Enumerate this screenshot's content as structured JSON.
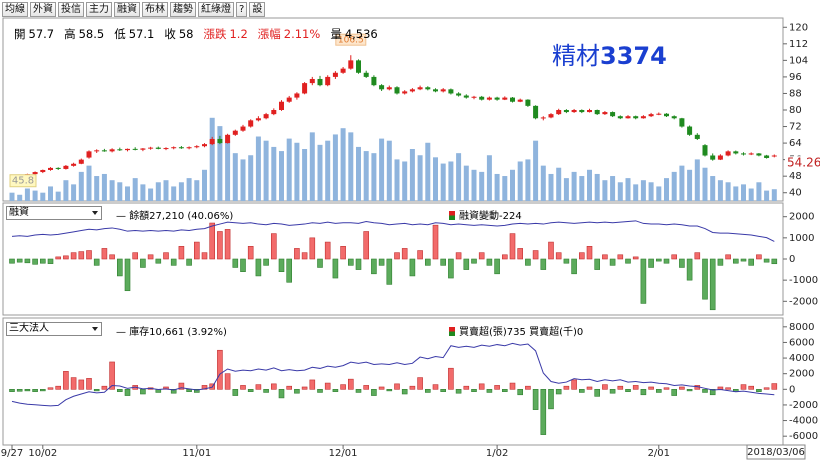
{
  "toolbar": [
    "均線",
    "外資",
    "投信",
    "主力",
    "融資",
    "布林",
    "趨勢",
    "紅綠燈",
    "?",
    "設"
  ],
  "quote": [
    {
      "label": "開",
      "value": "57.7"
    },
    {
      "label": "高",
      "value": "58.5"
    },
    {
      "label": "低",
      "value": "57.1"
    },
    {
      "label": "收",
      "value": "58"
    },
    {
      "label": "漲跌",
      "value": "1.2",
      "color": "#e02020"
    },
    {
      "label": "漲幅",
      "value": "2.11%",
      "color": "#e02020"
    },
    {
      "label": "量",
      "value": "4,536"
    }
  ],
  "chart_data": [
    {
      "type": "candlestick",
      "title_name": "精材",
      "title_code": "3374",
      "title_color": "#1a3fd0",
      "ylim": [
        36,
        124
      ],
      "yticks": [
        40,
        48,
        56,
        64,
        72,
        80,
        88,
        96,
        104,
        112,
        120
      ],
      "up_color": "#e02020",
      "down_color": "#1f8a1f",
      "volume_color": "#8fb4dd",
      "volume_lim": [
        0,
        70000
      ],
      "high_label": 106.5,
      "low_label": 45.8,
      "last_label": 54.26,
      "ohlc": [
        [
          46.5,
          47.5,
          45.8,
          47
        ],
        [
          47,
          48.3,
          46.8,
          48
        ],
        [
          48,
          49.2,
          47.6,
          49
        ],
        [
          49,
          50.3,
          48.7,
          50
        ],
        [
          50,
          51.2,
          49.5,
          51
        ],
        [
          51,
          52.4,
          50.6,
          52
        ],
        [
          52,
          52.3,
          51,
          51.5
        ],
        [
          51.5,
          53.4,
          51.2,
          53
        ],
        [
          53,
          54.5,
          52.6,
          54
        ],
        [
          54,
          56.5,
          53.8,
          56
        ],
        [
          57,
          60.5,
          56.5,
          60
        ],
        [
          60,
          61,
          59.2,
          60.5
        ],
        [
          60.5,
          61.2,
          59.8,
          60
        ],
        [
          60,
          61.5,
          59.5,
          61
        ],
        [
          61,
          61.8,
          60.2,
          60.6
        ],
        [
          60.6,
          61.4,
          60,
          61.2
        ],
        [
          61.2,
          62,
          60.5,
          60.8
        ],
        [
          60.8,
          61.6,
          60.1,
          61.4
        ],
        [
          61.4,
          62.2,
          60.8,
          61.8
        ],
        [
          61.8,
          62.3,
          61,
          61.2
        ],
        [
          61.2,
          62,
          60.6,
          61.6
        ],
        [
          61.6,
          62.4,
          61,
          62
        ],
        [
          62,
          62.6,
          61.2,
          61.5
        ],
        [
          61.5,
          62.4,
          61,
          62
        ],
        [
          62,
          63,
          61.5,
          62.5
        ],
        [
          62.5,
          64,
          62,
          63.5
        ],
        [
          63.5,
          67,
          63,
          66
        ],
        [
          66,
          67.5,
          63.5,
          64
        ],
        [
          64,
          68.5,
          63.8,
          68
        ],
        [
          68,
          70.5,
          67.5,
          70
        ],
        [
          70,
          72.8,
          69.5,
          72
        ],
        [
          72,
          75.5,
          71.5,
          75
        ],
        [
          75,
          77,
          74.5,
          76
        ],
        [
          76,
          78.6,
          75.5,
          78
        ],
        [
          78,
          80.8,
          77.5,
          80
        ],
        [
          80,
          84.8,
          79.6,
          84
        ],
        [
          84,
          86.8,
          83.5,
          86
        ],
        [
          86,
          88.6,
          85,
          88
        ],
        [
          88,
          93.5,
          87.6,
          93
        ],
        [
          93,
          96,
          92,
          95
        ],
        [
          95,
          96.5,
          91.5,
          92
        ],
        [
          92,
          96.8,
          91.5,
          96
        ],
        [
          96,
          98.8,
          95,
          98
        ],
        [
          98,
          100.8,
          97.5,
          100
        ],
        [
          100,
          106.5,
          99.5,
          104
        ],
        [
          104,
          104.5,
          97.5,
          98
        ],
        [
          98,
          99,
          95.5,
          96
        ],
        [
          96,
          96.8,
          91.5,
          92
        ],
        [
          92,
          92.5,
          89.2,
          90
        ],
        [
          90,
          91.8,
          89.5,
          91
        ],
        [
          91,
          91.5,
          87.5,
          88
        ],
        [
          88,
          89.6,
          87.5,
          89
        ],
        [
          89,
          90.6,
          88.5,
          90
        ],
        [
          90,
          91.8,
          89.6,
          91
        ],
        [
          91,
          91.5,
          89.5,
          90
        ],
        [
          90,
          90.5,
          88.6,
          89
        ],
        [
          89,
          90.6,
          88.5,
          90
        ],
        [
          90,
          90.4,
          87.5,
          88
        ],
        [
          88,
          88.6,
          86.5,
          87
        ],
        [
          87,
          87.6,
          85.5,
          86
        ],
        [
          86,
          86.8,
          85.2,
          86.4
        ],
        [
          86.4,
          86.8,
          84.6,
          85
        ],
        [
          85,
          86.5,
          84.6,
          86
        ],
        [
          86,
          86.4,
          84.5,
          85
        ],
        [
          85,
          86.6,
          84.8,
          86
        ],
        [
          86,
          86.3,
          83.6,
          84
        ],
        [
          84,
          85.5,
          83.8,
          85
        ],
        [
          85,
          85.2,
          81.5,
          82
        ],
        [
          82,
          82.3,
          75.5,
          76
        ],
        [
          76,
          77,
          75,
          76.4
        ],
        [
          76.4,
          78.5,
          76,
          78
        ],
        [
          78,
          80.6,
          77.6,
          80
        ],
        [
          80,
          80.4,
          78.5,
          79
        ],
        [
          79,
          80.5,
          78.6,
          80
        ],
        [
          80,
          80.3,
          78.5,
          79
        ],
        [
          79,
          80.6,
          78.8,
          80
        ],
        [
          80,
          80.2,
          77.6,
          78
        ],
        [
          78,
          79.5,
          77.6,
          79
        ],
        [
          79,
          79.3,
          76.6,
          77
        ],
        [
          77,
          77.4,
          75.6,
          76
        ],
        [
          76,
          77.5,
          75.8,
          77
        ],
        [
          77,
          77.3,
          75.5,
          76
        ],
        [
          76,
          77.5,
          75.8,
          77
        ],
        [
          77,
          78.6,
          76.6,
          78
        ],
        [
          78,
          78.8,
          77.5,
          78.2
        ],
        [
          78.2,
          78.5,
          76.6,
          77
        ],
        [
          77,
          77.4,
          75.5,
          76
        ],
        [
          76,
          76.2,
          71.5,
          72
        ],
        [
          72,
          72.5,
          67.5,
          68
        ],
        [
          68,
          68.8,
          65.5,
          66
        ],
        [
          63,
          63.5,
          57.5,
          58
        ],
        [
          58,
          59,
          55.5,
          56
        ],
        [
          56,
          58.6,
          55.8,
          58
        ],
        [
          58,
          60.5,
          57.6,
          60
        ],
        [
          60,
          60.4,
          58.5,
          59
        ],
        [
          59,
          59.6,
          58,
          58.5
        ],
        [
          58.5,
          59.5,
          58.2,
          59
        ],
        [
          59,
          59.2,
          57.6,
          58
        ],
        [
          58,
          58.3,
          56.5,
          56.8
        ],
        [
          57.7,
          58.5,
          57.1,
          58
        ]
      ],
      "volume": [
        3200,
        2400,
        4800,
        4000,
        3200,
        5600,
        3600,
        8000,
        6400,
        11200,
        13600,
        9600,
        10400,
        8000,
        7200,
        5600,
        8800,
        6400,
        4800,
        7200,
        8000,
        5600,
        7200,
        8800,
        8000,
        12000,
        32000,
        28800,
        23200,
        18400,
        16000,
        17600,
        24800,
        23200,
        20800,
        19200,
        24000,
        22400,
        20000,
        26400,
        21600,
        23200,
        25600,
        28000,
        26400,
        20800,
        19200,
        18400,
        24000,
        23200,
        16000,
        15200,
        20000,
        17600,
        22400,
        16800,
        14400,
        15200,
        18400,
        13600,
        12000,
        11200,
        17600,
        10400,
        9600,
        12000,
        15200,
        16000,
        23200,
        13600,
        10400,
        12800,
        8800,
        11200,
        9600,
        12000,
        10400,
        8000,
        9600,
        7200,
        8800,
        6400,
        8000,
        7200,
        5600,
        8800,
        11200,
        13600,
        12000,
        16000,
        12800,
        9600,
        8000,
        7200,
        5600,
        6400,
        4800,
        7200,
        4000,
        4536
      ]
    },
    {
      "type": "bar-line",
      "selector": "融資",
      "legend_line": "餘額27,210 (40.06%)",
      "legend_bar": "融資變動-224",
      "ylim": [
        -2600,
        2600
      ],
      "yticks": [
        2000,
        1000,
        0,
        -1000,
        -2000
      ],
      "y2lim": [
        16000,
        33000
      ],
      "up_color": "#f26b6b",
      "down_color": "#5cab5c",
      "line_color": "#3a3aa8",
      "values": [
        -200,
        -150,
        -180,
        -250,
        -200,
        -220,
        100,
        150,
        300,
        350,
        400,
        -300,
        500,
        200,
        -800,
        -1500,
        300,
        -400,
        200,
        -200,
        300,
        -300,
        600,
        -300,
        800,
        300,
        1700,
        1300,
        1400,
        -400,
        -600,
        600,
        -800,
        -300,
        1200,
        -600,
        -1100,
        500,
        300,
        1000,
        -400,
        800,
        -900,
        600,
        -300,
        -500,
        1300,
        -700,
        -300,
        -1200,
        300,
        500,
        -800,
        400,
        -300,
        1600,
        -300,
        -900,
        300,
        -500,
        -200,
        300,
        -300,
        -700,
        200,
        1200,
        500,
        -300,
        400,
        -500,
        800,
        300,
        -200,
        -700,
        300,
        600,
        -500,
        200,
        -300,
        200,
        -200,
        100,
        -2100,
        -400,
        -100,
        -200,
        200,
        -400,
        -1000,
        300,
        -1900,
        -2400,
        -300,
        200,
        -200,
        -100,
        -300,
        200,
        -150,
        -224
      ],
      "line_values": [
        28000,
        28100,
        28000,
        28200,
        28300,
        28200,
        28300,
        28500,
        28700,
        28900,
        29100,
        29000,
        29200,
        29300,
        29100,
        28800,
        28900,
        28800,
        28900,
        28800,
        28900,
        28800,
        29000,
        28900,
        29100,
        29200,
        29600,
        29900,
        30200,
        30100,
        30000,
        30100,
        29900,
        29800,
        30000,
        29900,
        29700,
        29800,
        29900,
        30100,
        30000,
        30200,
        30000,
        30100,
        30100,
        30000,
        30300,
        30100,
        30000,
        29800,
        29900,
        30000,
        29800,
        29900,
        29800,
        30100,
        30000,
        29800,
        29900,
        29800,
        29700,
        29800,
        29700,
        29600,
        29700,
        29900,
        30000,
        29900,
        30000,
        29900,
        30100,
        30200,
        30100,
        30000,
        30100,
        30200,
        30100,
        30200,
        30100,
        30200,
        30300,
        30400,
        30000,
        29900,
        29900,
        29800,
        29900,
        29800,
        29600,
        29600,
        29200,
        28600,
        28500,
        28500,
        28400,
        28300,
        28200,
        28000,
        27800,
        27210
      ]
    },
    {
      "type": "bar-line",
      "selector": "三大法人",
      "legend_line": "庫存10,661 (3.92%)",
      "legend_bar": "買賣超(張)735 買賣超(千)0",
      "ylim": [
        -7000,
        9000
      ],
      "yticks": [
        8000,
        6000,
        4000,
        2000,
        0,
        -2000,
        -4000,
        -6000
      ],
      "y2lim": [
        2000,
        24000
      ],
      "up_color": "#f26b6b",
      "down_color": "#5cab5c",
      "line_color": "#3a3aa8",
      "categories": [
        "9/27",
        null,
        null,
        null,
        "10/02",
        null,
        null,
        null,
        null,
        null,
        null,
        null,
        null,
        null,
        null,
        null,
        null,
        null,
        null,
        null,
        null,
        null,
        null,
        null,
        "11/01",
        null,
        null,
        null,
        null,
        null,
        null,
        null,
        null,
        null,
        null,
        null,
        null,
        null,
        null,
        null,
        null,
        null,
        null,
        "12/01",
        null,
        null,
        null,
        null,
        null,
        null,
        null,
        null,
        null,
        null,
        null,
        null,
        null,
        null,
        null,
        null,
        null,
        null,
        null,
        "1/02",
        null,
        null,
        null,
        null,
        null,
        null,
        null,
        null,
        null,
        null,
        null,
        null,
        null,
        null,
        null,
        null,
        null,
        null,
        null,
        null,
        "2/01",
        null,
        null,
        null,
        null,
        null,
        null,
        null,
        null,
        null,
        null,
        null,
        null,
        null,
        null,
        null
      ],
      "end_date": "2018/03/06",
      "values": [
        -300,
        -250,
        -200,
        -300,
        -200,
        200,
        400,
        2300,
        1500,
        1200,
        1400,
        -200,
        400,
        3500,
        -300,
        -800,
        500,
        -600,
        200,
        -400,
        300,
        -500,
        800,
        -300,
        -400,
        500,
        700,
        5000,
        2000,
        -800,
        500,
        -300,
        600,
        -400,
        700,
        -1100,
        400,
        -500,
        300,
        1200,
        -400,
        800,
        -300,
        600,
        1300,
        -400,
        500,
        -800,
        300,
        -200,
        700,
        -600,
        400,
        1500,
        -400,
        600,
        -300,
        2700,
        -500,
        400,
        -300,
        700,
        -400,
        500,
        -300,
        800,
        -700,
        400,
        -2600,
        -5800,
        -2500,
        -600,
        400,
        1200,
        -400,
        300,
        -900,
        600,
        -500,
        400,
        -300,
        500,
        -700,
        300,
        -400,
        200,
        -800,
        300,
        -200,
        500,
        -400,
        -700,
        300,
        200,
        -300,
        600,
        400,
        -300,
        200,
        735
      ],
      "line_values": [
        9500,
        9200,
        9000,
        8900,
        8800,
        8700,
        8800,
        9800,
        10400,
        10800,
        11200,
        11000,
        11100,
        12300,
        12200,
        11800,
        12000,
        11700,
        11800,
        11600,
        11700,
        11500,
        11900,
        11700,
        11500,
        11700,
        12000,
        14300,
        15200,
        14800,
        15000,
        14900,
        15200,
        15000,
        15400,
        14900,
        15100,
        14900,
        15000,
        15500,
        15300,
        15700,
        15500,
        15800,
        16400,
        16200,
        16400,
        16000,
        16100,
        16000,
        16300,
        16000,
        16200,
        17300,
        17000,
        17400,
        17200,
        19300,
        19000,
        19200,
        19000,
        19400,
        19200,
        19500,
        19300,
        19700,
        19400,
        19600,
        18400,
        14500,
        13000,
        12700,
        12900,
        13500,
        13300,
        13400,
        13000,
        13300,
        13100,
        13300,
        12900,
        13000,
        12800,
        12900,
        12700,
        12600,
        12300,
        12400,
        12200,
        12100,
        11800,
        11500,
        11600,
        11400,
        11200,
        11300,
        11100,
        10900,
        10800,
        10661
      ]
    }
  ]
}
